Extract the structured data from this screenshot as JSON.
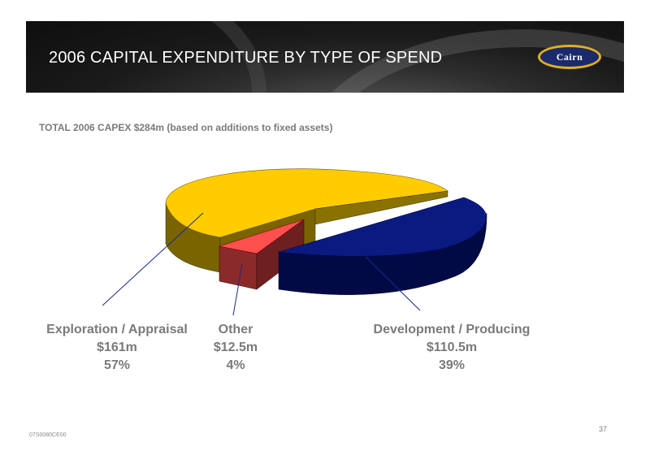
{
  "header": {
    "title": "2006 CAPITAL EXPENDITURE BY TYPE OF SPEND",
    "logo_text": "Cairn"
  },
  "chart_data": {
    "type": "pie",
    "title": "TOTAL 2006 CAPEX $284m (based on additions to fixed assets)",
    "slices": [
      {
        "name": "Exploration / Appraisal",
        "value": 161,
        "value_label": "$161m",
        "percent_label": "57%",
        "color": "#ffcc00",
        "side_color": "#7a6400"
      },
      {
        "name": "Other",
        "value": 12.5,
        "value_label": "$12.5m",
        "percent_label": "4%",
        "color": "#ff5050",
        "side_color": "#8b2a2a"
      },
      {
        "name": "Development / Producing",
        "value": 110.5,
        "value_label": "$110.5m",
        "percent_label": "39%",
        "color": "#0a1a80",
        "side_color": "#020a45"
      }
    ]
  },
  "footer": {
    "code": "07S0080CE00",
    "page": "37"
  }
}
